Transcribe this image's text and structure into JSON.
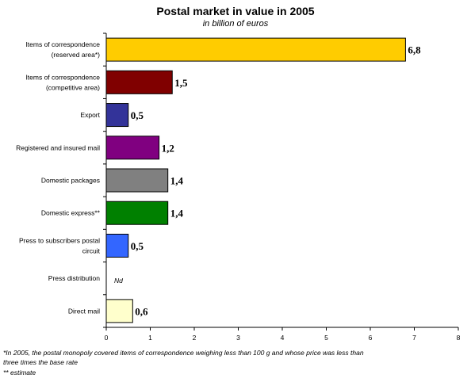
{
  "chart_data": {
    "type": "bar",
    "orientation": "horizontal",
    "title": "Postal market in value in 2005",
    "subtitle": "in billion of euros",
    "categories": [
      [
        "Items of correspondence",
        "(reserved area*)"
      ],
      [
        "Items of correspondence",
        "(competitive area)"
      ],
      [
        "Export"
      ],
      [
        "Registered and insured mail"
      ],
      [
        "Domestic packages"
      ],
      [
        "Domestic express**"
      ],
      [
        "Press to subscribers postal",
        "circuit"
      ],
      [
        "Press distribution"
      ],
      [
        "Direct mail"
      ]
    ],
    "values": [
      6.8,
      1.5,
      0.5,
      1.2,
      1.4,
      1.4,
      0.5,
      null,
      0.6
    ],
    "value_labels": [
      "6,8",
      "1,5",
      "0,5",
      "1,2",
      "1,4",
      "1,4",
      "0,5",
      "Nd",
      "0,6"
    ],
    "colors": [
      "#FFCC00",
      "#800000",
      "#333399",
      "#800080",
      "#808080",
      "#008000",
      "#3366FF",
      "#ffffff",
      "#FFFFCC"
    ],
    "xlim": [
      0,
      8
    ],
    "xticks": [
      "0",
      "1",
      "2",
      "3",
      "4",
      "5",
      "6",
      "7",
      "8"
    ],
    "grid": false,
    "legend": "none"
  },
  "footnotes": [
    "*In 2005, the postal monopoly covered items of correspondence weighing less than 100 g and whose price was less than",
    "three times the base rate",
    "** estimate"
  ]
}
